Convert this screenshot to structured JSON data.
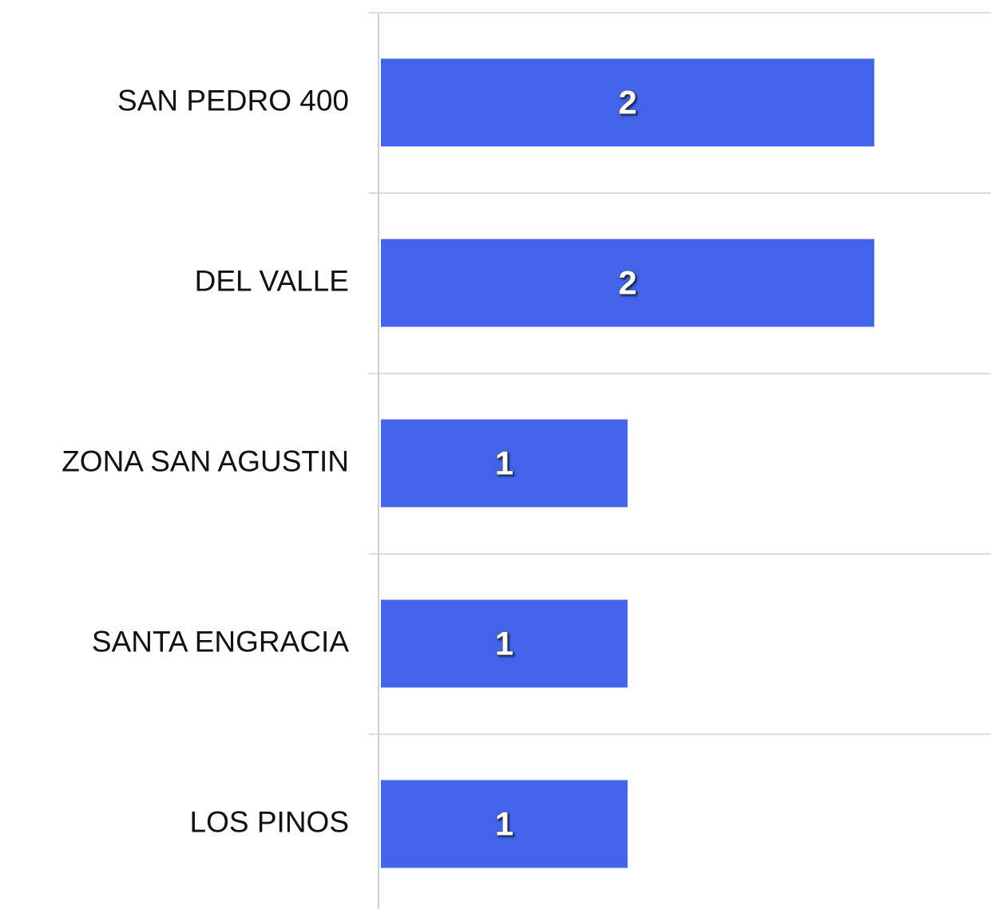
{
  "chart_data": {
    "type": "hbar",
    "categories": [
      "SAN PEDRO 400",
      "DEL VALLE",
      "ZONA SAN AGUSTIN",
      "SANTA ENGRACIA",
      "LOS PINOS"
    ],
    "values": [
      2,
      2,
      1,
      1,
      1
    ],
    "color": "#4164e9",
    "xlim": [
      0,
      2.47
    ]
  }
}
